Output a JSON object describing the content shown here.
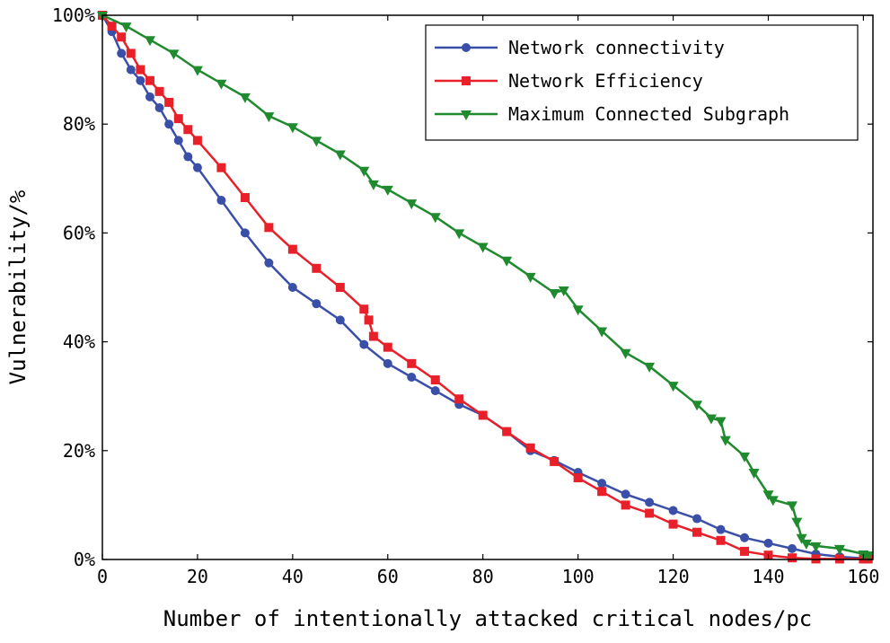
{
  "chart_data": {
    "type": "line",
    "title": "",
    "xlabel": "Number of intentionally attacked critical nodes/pc",
    "ylabel": "Vulnerability/%",
    "xlim": [
      0,
      162
    ],
    "ylim": [
      0,
      100
    ],
    "xticks": [
      0,
      20,
      40,
      60,
      80,
      100,
      120,
      140,
      160
    ],
    "xtick_labels": [
      "0",
      "20",
      "40",
      "60",
      "80",
      "100",
      "120",
      "140",
      "160"
    ],
    "yticks": [
      0,
      20,
      40,
      60,
      80,
      100
    ],
    "ytick_labels": [
      "0%",
      "20%",
      "40%",
      "60%",
      "80%",
      "100%"
    ],
    "grid": false,
    "legend_position": "top-right",
    "series": [
      {
        "name": "Network connectivity",
        "color": "#3a4fa8",
        "marker": "circle",
        "x": [
          0,
          2,
          4,
          6,
          8,
          10,
          12,
          14,
          16,
          18,
          20,
          25,
          30,
          35,
          40,
          45,
          50,
          55,
          60,
          65,
          70,
          75,
          80,
          85,
          90,
          95,
          100,
          105,
          110,
          115,
          120,
          125,
          130,
          135,
          140,
          145,
          150,
          155,
          160,
          161
        ],
        "y": [
          100,
          97,
          93,
          90,
          88,
          85,
          83,
          80,
          77,
          74,
          72,
          66,
          60,
          54.5,
          50,
          47,
          44,
          39.5,
          36,
          33.5,
          31,
          28.5,
          26.5,
          23.5,
          20,
          18.2,
          16,
          14,
          12,
          10.5,
          9,
          7.5,
          5.5,
          4,
          3,
          2,
          1,
          0.5,
          0.2,
          0.1
        ]
      },
      {
        "name": "Network Efficiency",
        "color": "#e8202a",
        "marker": "square",
        "x": [
          0,
          2,
          4,
          6,
          8,
          10,
          12,
          14,
          16,
          18,
          20,
          25,
          30,
          35,
          40,
          45,
          50,
          55,
          56,
          57,
          60,
          65,
          70,
          75,
          80,
          85,
          90,
          95,
          100,
          105,
          110,
          115,
          120,
          125,
          130,
          135,
          140,
          145,
          150,
          155,
          160,
          161
        ],
        "y": [
          100,
          98,
          96,
          93,
          90,
          88,
          86,
          84,
          81,
          79,
          77,
          72,
          66.5,
          61,
          57,
          53.5,
          50,
          46,
          44,
          41,
          39,
          36,
          33,
          29.5,
          26.5,
          23.5,
          20.5,
          18,
          15,
          12.5,
          10,
          8.5,
          6.5,
          5,
          3.5,
          1.5,
          0.8,
          0.3,
          0.1,
          0.1,
          0.1,
          0.1
        ]
      },
      {
        "name": "Maximum Connected Subgraph",
        "color": "#1f8a2e",
        "marker": "triangle-down",
        "x": [
          0,
          5,
          10,
          15,
          20,
          25,
          30,
          35,
          40,
          45,
          50,
          55,
          57,
          60,
          65,
          70,
          75,
          80,
          85,
          90,
          95,
          97,
          100,
          105,
          110,
          115,
          120,
          125,
          128,
          130,
          131,
          135,
          137,
          140,
          141,
          145,
          146,
          147,
          148,
          150,
          155,
          160,
          161
        ],
        "y": [
          100,
          98,
          95.5,
          93,
          90,
          87.5,
          85,
          81.5,
          79.5,
          77,
          74.5,
          71.5,
          69,
          68,
          65.5,
          63,
          60,
          57.5,
          55,
          52,
          49,
          49.5,
          46,
          42,
          38,
          35.5,
          32,
          28.5,
          26,
          25.5,
          22,
          19,
          16,
          12,
          11,
          10,
          7,
          4,
          3,
          2.5,
          2,
          1,
          0.8
        ]
      }
    ]
  }
}
